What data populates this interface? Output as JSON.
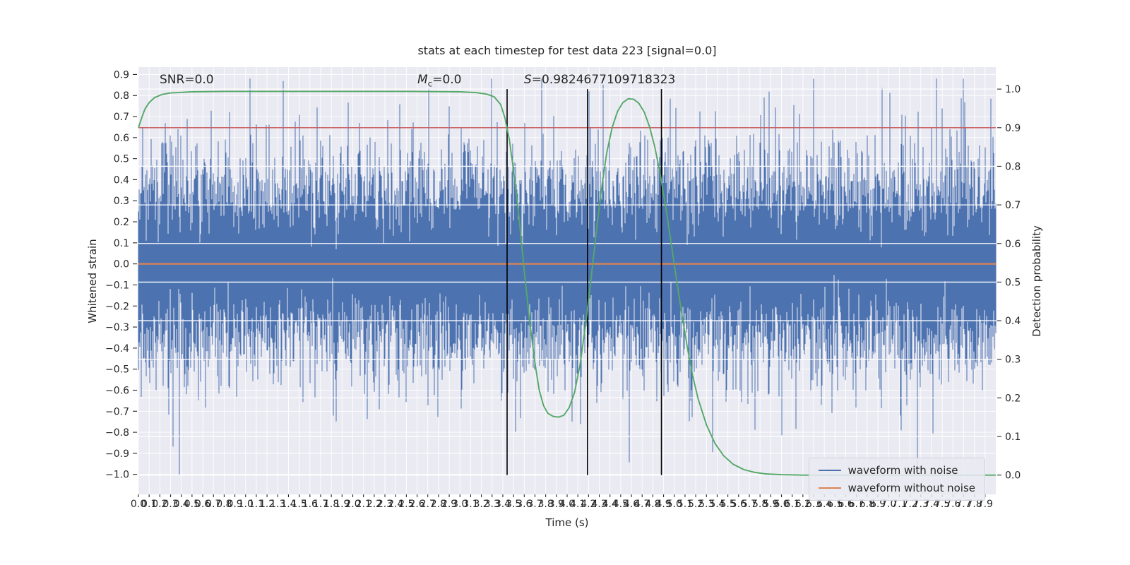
{
  "chart_data": {
    "type": "line",
    "title": "stats at each timestep for test data 223 [signal=0.0]",
    "xlabel": "Time (s)",
    "ylabel_left": "Whitened strain",
    "ylabel_right": "Detection probability",
    "xlim": [
      0.0,
      8.0
    ],
    "ylim_left": [
      -1.095,
      0.935
    ],
    "ylim_right": [
      -0.05,
      1.057
    ],
    "x_ticks": {
      "start": 0.0,
      "end": 7.9,
      "step": 0.1,
      "decimals": 1
    },
    "y_ticks_left": {
      "start": -1.0,
      "end": 0.9,
      "step": 0.1,
      "decimals": 1
    },
    "y_ticks_right": {
      "start": 0.0,
      "end": 1.0,
      "step": 0.1,
      "decimals": 1
    },
    "grid": true,
    "colors": {
      "plot_bg": "#eaeaf2",
      "grid": "#ffffff",
      "text": "#262626",
      "blue": "#4c72b0",
      "orange": "#dd8452",
      "green": "#55a868",
      "red": "#c44e52",
      "vline": "#000000",
      "tick": "#262626"
    },
    "annotations": [
      {
        "id": "snr",
        "text": "SNR=0.0",
        "math": false,
        "x": 0.2
      },
      {
        "id": "mc",
        "text": "M_c=0.0",
        "math": true,
        "x": 2.6
      },
      {
        "id": "s",
        "text": "S=0.9824677109718323",
        "math": true,
        "x": 3.6
      }
    ],
    "noise_series": {
      "name": "waveform with noise",
      "axis": "left",
      "seed": 223,
      "components": [
        {
          "n": 12,
          "std": 0.2
        },
        {
          "n": 2,
          "std": 0.3
        }
      ],
      "clip": [
        -1.0,
        0.88
      ]
    },
    "flat_series": {
      "name": "waveform without noise",
      "axis": "left",
      "value": 0.0
    },
    "threshold_line": {
      "axis": "right",
      "value": 0.9
    },
    "vlines": [
      3.44,
      4.19,
      4.88
    ],
    "detection_series": {
      "name": "detection probability",
      "axis": "right",
      "points": [
        [
          0.0,
          0.9
        ],
        [
          0.03,
          0.925
        ],
        [
          0.06,
          0.948
        ],
        [
          0.1,
          0.965
        ],
        [
          0.15,
          0.978
        ],
        [
          0.22,
          0.986
        ],
        [
          0.3,
          0.99
        ],
        [
          0.5,
          0.993
        ],
        [
          0.8,
          0.994
        ],
        [
          1.5,
          0.994
        ],
        [
          2.5,
          0.994
        ],
        [
          3.0,
          0.993
        ],
        [
          3.15,
          0.991
        ],
        [
          3.25,
          0.987
        ],
        [
          3.32,
          0.98
        ],
        [
          3.38,
          0.96
        ],
        [
          3.42,
          0.925
        ],
        [
          3.46,
          0.87
        ],
        [
          3.5,
          0.79
        ],
        [
          3.55,
          0.67
        ],
        [
          3.6,
          0.53
        ],
        [
          3.65,
          0.4
        ],
        [
          3.7,
          0.29
        ],
        [
          3.74,
          0.22
        ],
        [
          3.78,
          0.18
        ],
        [
          3.82,
          0.16
        ],
        [
          3.87,
          0.152
        ],
        [
          3.92,
          0.15
        ],
        [
          3.97,
          0.155
        ],
        [
          4.02,
          0.175
        ],
        [
          4.07,
          0.215
        ],
        [
          4.12,
          0.285
        ],
        [
          4.17,
          0.385
        ],
        [
          4.22,
          0.5
        ],
        [
          4.27,
          0.625
        ],
        [
          4.32,
          0.74
        ],
        [
          4.37,
          0.835
        ],
        [
          4.42,
          0.9
        ],
        [
          4.47,
          0.942
        ],
        [
          4.52,
          0.965
        ],
        [
          4.57,
          0.975
        ],
        [
          4.62,
          0.974
        ],
        [
          4.67,
          0.963
        ],
        [
          4.72,
          0.94
        ],
        [
          4.77,
          0.902
        ],
        [
          4.82,
          0.848
        ],
        [
          4.87,
          0.778
        ],
        [
          4.92,
          0.695
        ],
        [
          4.97,
          0.603
        ],
        [
          5.02,
          0.508
        ],
        [
          5.07,
          0.417
        ],
        [
          5.12,
          0.333
        ],
        [
          5.17,
          0.26
        ],
        [
          5.22,
          0.2
        ],
        [
          5.3,
          0.13
        ],
        [
          5.38,
          0.082
        ],
        [
          5.46,
          0.05
        ],
        [
          5.55,
          0.028
        ],
        [
          5.65,
          0.014
        ],
        [
          5.75,
          0.007
        ],
        [
          5.85,
          0.003
        ],
        [
          6.0,
          0.001
        ],
        [
          6.2,
          0.0
        ],
        [
          7.0,
          0.0
        ],
        [
          8.0,
          0.0
        ]
      ]
    },
    "legend": {
      "position": "lower right",
      "items": [
        {
          "label": "waveform with noise",
          "color": "#4c72b0"
        },
        {
          "label": "waveform without noise",
          "color": "#dd8452"
        }
      ]
    }
  }
}
